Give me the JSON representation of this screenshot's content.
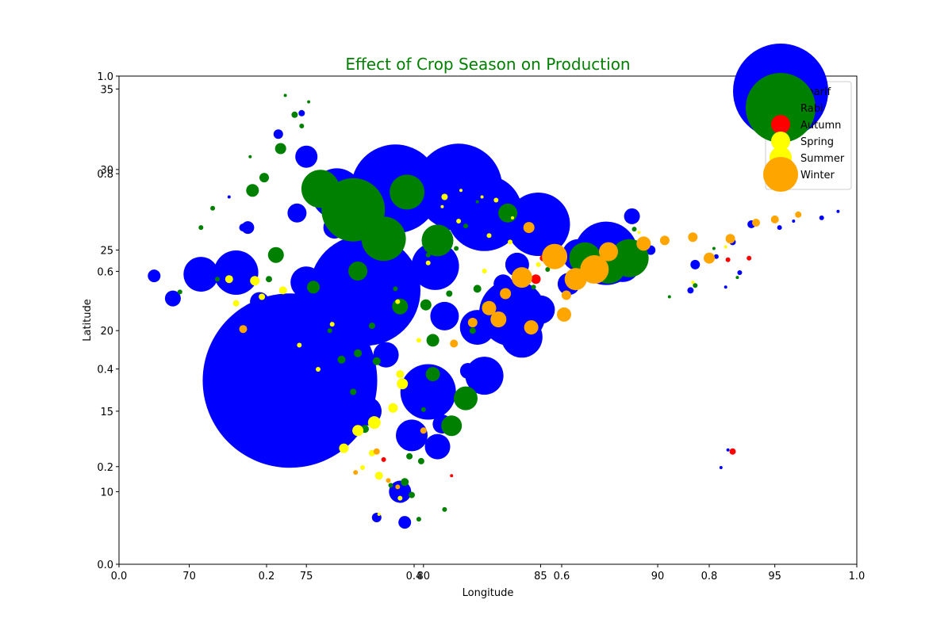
{
  "chart_data": {
    "type": "scatter",
    "title": "Effect of Crop Season on Production",
    "title_color": "#008000",
    "xlabel": "Longitude",
    "ylabel": "Latitude",
    "xlim": [
      67.0,
      98.5
    ],
    "ylim": [
      5.5,
      35.8
    ],
    "xticks": [
      70,
      75,
      80,
      85,
      90,
      95
    ],
    "yticks": [
      10,
      15,
      20,
      25,
      30,
      35
    ],
    "overlay_axes": {
      "xlim": [
        0.0,
        1.0
      ],
      "ylim": [
        0.0,
        1.0
      ],
      "xticks": [
        "0.0",
        "0.2",
        "0.4",
        "0.6",
        "0.8",
        "1.0"
      ],
      "yticks": [
        "0.0",
        "0.2",
        "0.4",
        "0.6",
        "0.8",
        "1.0"
      ]
    },
    "grid": false,
    "legend_position": "top-right",
    "series": [
      {
        "name": "Kharif",
        "color": "#0000ff",
        "points": [
          [
            74.3,
            16.9,
            110
          ],
          [
            77.5,
            22.5,
            70
          ],
          [
            78.8,
            28.8,
            56
          ],
          [
            81.5,
            28.9,
            55
          ],
          [
            82.6,
            27.3,
            48
          ],
          [
            83.8,
            21.1,
            42
          ],
          [
            84.9,
            26.6,
            40
          ],
          [
            87.8,
            24.8,
            40
          ],
          [
            80.2,
            16.2,
            35
          ],
          [
            72.0,
            23.6,
            28
          ],
          [
            70.5,
            23.5,
            22
          ],
          [
            84.2,
            19.6,
            26
          ],
          [
            82.6,
            17.2,
            24
          ],
          [
            76.3,
            28.5,
            32
          ],
          [
            80.5,
            24.0,
            30
          ],
          [
            79.5,
            13.5,
            20
          ],
          [
            80.6,
            12.8,
            16
          ],
          [
            79.0,
            10.0,
            14
          ],
          [
            82.3,
            20.2,
            22
          ],
          [
            86.6,
            24.7,
            20
          ],
          [
            85.0,
            21.3,
            18
          ],
          [
            76.2,
            26.4,
            14
          ],
          [
            88.5,
            24.1,
            22
          ],
          [
            77.6,
            15.0,
            18
          ],
          [
            80.9,
            20.9,
            18
          ],
          [
            75.0,
            23.0,
            20
          ],
          [
            78.4,
            18.5,
            16
          ],
          [
            86.2,
            22.9,
            14
          ],
          [
            79.2,
            8.1,
            8
          ],
          [
            84.0,
            24.1,
            15
          ],
          [
            80.8,
            14.2,
            12
          ],
          [
            75.0,
            30.8,
            14
          ],
          [
            74.6,
            27.3,
            12
          ],
          [
            81.9,
            17.5,
            10
          ],
          [
            83.4,
            22.9,
            12
          ],
          [
            88.9,
            27.1,
            10
          ],
          [
            73.0,
            21.8,
            12
          ],
          [
            69.3,
            22.0,
            10
          ],
          [
            68.5,
            23.4,
            8
          ],
          [
            72.5,
            26.4,
            8
          ],
          [
            73.8,
            32.2,
            6
          ],
          [
            74.8,
            33.5,
            4
          ],
          [
            75.8,
            28.9,
            5
          ],
          [
            89.7,
            25.0,
            6
          ],
          [
            91.6,
            24.1,
            6
          ],
          [
            93.2,
            25.5,
            4
          ],
          [
            94.0,
            26.6,
            5
          ],
          [
            91.4,
            22.5,
            4
          ],
          [
            84.5,
            27.1,
            6
          ],
          [
            78.0,
            8.4,
            6
          ],
          [
            72.3,
            26.4,
            5
          ],
          [
            92.5,
            24.6,
            3
          ],
          [
            93.5,
            23.6,
            3
          ],
          [
            92.9,
            22.7,
            2
          ],
          [
            95.2,
            26.4,
            3
          ],
          [
            95.8,
            26.8,
            2
          ],
          [
            97.0,
            27.0,
            3
          ],
          [
            97.7,
            27.4,
            2
          ],
          [
            93.0,
            12.6,
            2
          ],
          [
            92.7,
            11.5,
            2
          ],
          [
            71.7,
            28.3,
            2
          ]
        ]
      },
      {
        "name": "Rabi",
        "color": "#008000",
        "points": [
          [
            77.0,
            27.5,
            40
          ],
          [
            75.6,
            28.8,
            24
          ],
          [
            79.3,
            28.6,
            22
          ],
          [
            78.3,
            25.7,
            28
          ],
          [
            80.6,
            25.6,
            20
          ],
          [
            83.6,
            27.3,
            12
          ],
          [
            88.8,
            24.5,
            24
          ],
          [
            87.9,
            24.0,
            22
          ],
          [
            86.9,
            24.5,
            20
          ],
          [
            81.2,
            14.1,
            13
          ],
          [
            81.8,
            15.8,
            15
          ],
          [
            80.4,
            17.3,
            9
          ],
          [
            79.0,
            21.5,
            10
          ],
          [
            77.2,
            23.7,
            12
          ],
          [
            75.3,
            22.7,
            8
          ],
          [
            73.7,
            24.7,
            10
          ],
          [
            72.7,
            28.7,
            8
          ],
          [
            73.9,
            31.3,
            7
          ],
          [
            73.2,
            29.5,
            6
          ],
          [
            74.5,
            33.4,
            4
          ],
          [
            74.8,
            32.7,
            3
          ],
          [
            75.1,
            34.2,
            2
          ],
          [
            74.1,
            34.6,
            2
          ],
          [
            80.4,
            19.4,
            8
          ],
          [
            80.1,
            21.6,
            7
          ],
          [
            82.7,
            21.5,
            6
          ],
          [
            82.3,
            22.6,
            5
          ],
          [
            84.0,
            23.3,
            6
          ],
          [
            78.0,
            18.1,
            5
          ],
          [
            77.2,
            18.6,
            5
          ],
          [
            76.5,
            18.2,
            5
          ],
          [
            79.4,
            12.2,
            4
          ],
          [
            79.9,
            11.9,
            4
          ],
          [
            79.2,
            10.6,
            5
          ],
          [
            79.5,
            9.8,
            4
          ],
          [
            78.6,
            10.4,
            3
          ],
          [
            77.5,
            13.9,
            5
          ],
          [
            77.0,
            16.2,
            4
          ],
          [
            82.1,
            20.0,
            4
          ],
          [
            81.1,
            22.3,
            4
          ],
          [
            77.8,
            20.3,
            4
          ],
          [
            76.0,
            20.0,
            3
          ],
          [
            70.5,
            26.4,
            3
          ],
          [
            71.0,
            27.6,
            3
          ],
          [
            84.7,
            22.7,
            3
          ],
          [
            85.3,
            23.8,
            3
          ],
          [
            89.0,
            26.3,
            3
          ],
          [
            91.6,
            22.8,
            3
          ],
          [
            92.4,
            25.1,
            2
          ],
          [
            73.4,
            23.2,
            4
          ],
          [
            71.2,
            23.2,
            3
          ],
          [
            69.6,
            22.4,
            3
          ],
          [
            78.8,
            22.6,
            3
          ],
          [
            80.0,
            15.1,
            3
          ],
          [
            80.9,
            8.9,
            3
          ],
          [
            79.8,
            8.3,
            3
          ],
          [
            80.2,
            24.7,
            3
          ],
          [
            81.4,
            25.1,
            3
          ],
          [
            81.8,
            26.5,
            3
          ],
          [
            82.3,
            28.0,
            2
          ],
          [
            93.4,
            23.3,
            2
          ],
          [
            90.5,
            22.1,
            2
          ],
          [
            72.6,
            30.8,
            2
          ]
        ]
      },
      {
        "name": "Autumn",
        "color": "#ff0000",
        "points": [
          [
            93.2,
            12.5,
            4
          ],
          [
            84.8,
            23.2,
            6
          ],
          [
            85.1,
            24.5,
            4
          ],
          [
            93.0,
            24.4,
            3
          ],
          [
            93.9,
            24.5,
            3
          ],
          [
            78.3,
            12.0,
            3
          ],
          [
            85.7,
            24.9,
            2
          ],
          [
            81.2,
            11.0,
            2
          ]
        ]
      },
      {
        "name": "Spring",
        "color": "#ffff00",
        "points": [
          [
            81.6,
            28.7,
            2
          ],
          [
            82.5,
            28.3,
            2
          ],
          [
            80.8,
            27.7,
            2
          ],
          [
            83.8,
            27.0,
            2
          ],
          [
            92.9,
            25.2,
            2
          ],
          [
            89.2,
            26.1,
            2
          ],
          [
            91.5,
            23.0,
            2
          ]
        ]
      },
      {
        "name": "Summer",
        "color": "#ffff00",
        "points": [
          [
            71.7,
            23.2,
            5
          ],
          [
            73.1,
            22.1,
            4
          ],
          [
            72.8,
            23.1,
            6
          ],
          [
            74.0,
            22.5,
            5
          ],
          [
            72.0,
            21.7,
            4
          ],
          [
            76.6,
            12.7,
            6
          ],
          [
            77.2,
            13.8,
            7
          ],
          [
            77.9,
            14.3,
            8
          ],
          [
            78.7,
            15.2,
            6
          ],
          [
            79.1,
            16.7,
            7
          ],
          [
            79.0,
            17.3,
            5
          ],
          [
            78.1,
            11.0,
            5
          ],
          [
            77.8,
            12.4,
            4
          ],
          [
            77.4,
            11.5,
            3
          ],
          [
            80.9,
            28.3,
            4
          ],
          [
            81.5,
            26.8,
            3
          ],
          [
            82.8,
            25.9,
            3
          ],
          [
            83.7,
            25.5,
            3
          ],
          [
            84.9,
            24.1,
            3
          ],
          [
            80.2,
            24.2,
            3
          ],
          [
            78.9,
            21.8,
            3
          ],
          [
            76.1,
            20.4,
            3
          ],
          [
            79.8,
            19.4,
            3
          ],
          [
            82.6,
            23.7,
            3
          ],
          [
            74.7,
            19.1,
            3
          ],
          [
            75.5,
            17.6,
            3
          ],
          [
            78.1,
            8.6,
            2
          ],
          [
            83.1,
            28.1,
            3
          ],
          [
            79.0,
            9.6,
            3
          ]
        ]
      },
      {
        "name": "Winter",
        "color": "#ffa500",
        "points": [
          [
            87.3,
            23.8,
            18
          ],
          [
            86.5,
            23.2,
            14
          ],
          [
            85.6,
            24.6,
            16
          ],
          [
            84.2,
            23.3,
            13
          ],
          [
            83.2,
            20.7,
            10
          ],
          [
            82.8,
            21.4,
            9
          ],
          [
            84.6,
            20.2,
            9
          ],
          [
            86.0,
            21.0,
            9
          ],
          [
            87.9,
            24.9,
            12
          ],
          [
            89.4,
            25.4,
            9
          ],
          [
            90.3,
            25.6,
            6
          ],
          [
            91.5,
            25.8,
            6
          ],
          [
            92.2,
            24.5,
            7
          ],
          [
            93.1,
            25.7,
            6
          ],
          [
            94.2,
            26.7,
            5
          ],
          [
            95.0,
            26.9,
            5
          ],
          [
            96.0,
            27.2,
            4
          ],
          [
            84.5,
            26.4,
            7
          ],
          [
            83.5,
            22.3,
            7
          ],
          [
            86.1,
            22.2,
            6
          ],
          [
            82.1,
            20.5,
            6
          ],
          [
            81.3,
            19.2,
            5
          ],
          [
            78.0,
            12.5,
            4
          ],
          [
            78.5,
            10.7,
            3
          ],
          [
            78.9,
            10.3,
            3
          ],
          [
            77.1,
            11.2,
            3
          ],
          [
            72.3,
            20.1,
            5
          ],
          [
            80.0,
            13.8,
            4
          ]
        ]
      }
    ]
  }
}
